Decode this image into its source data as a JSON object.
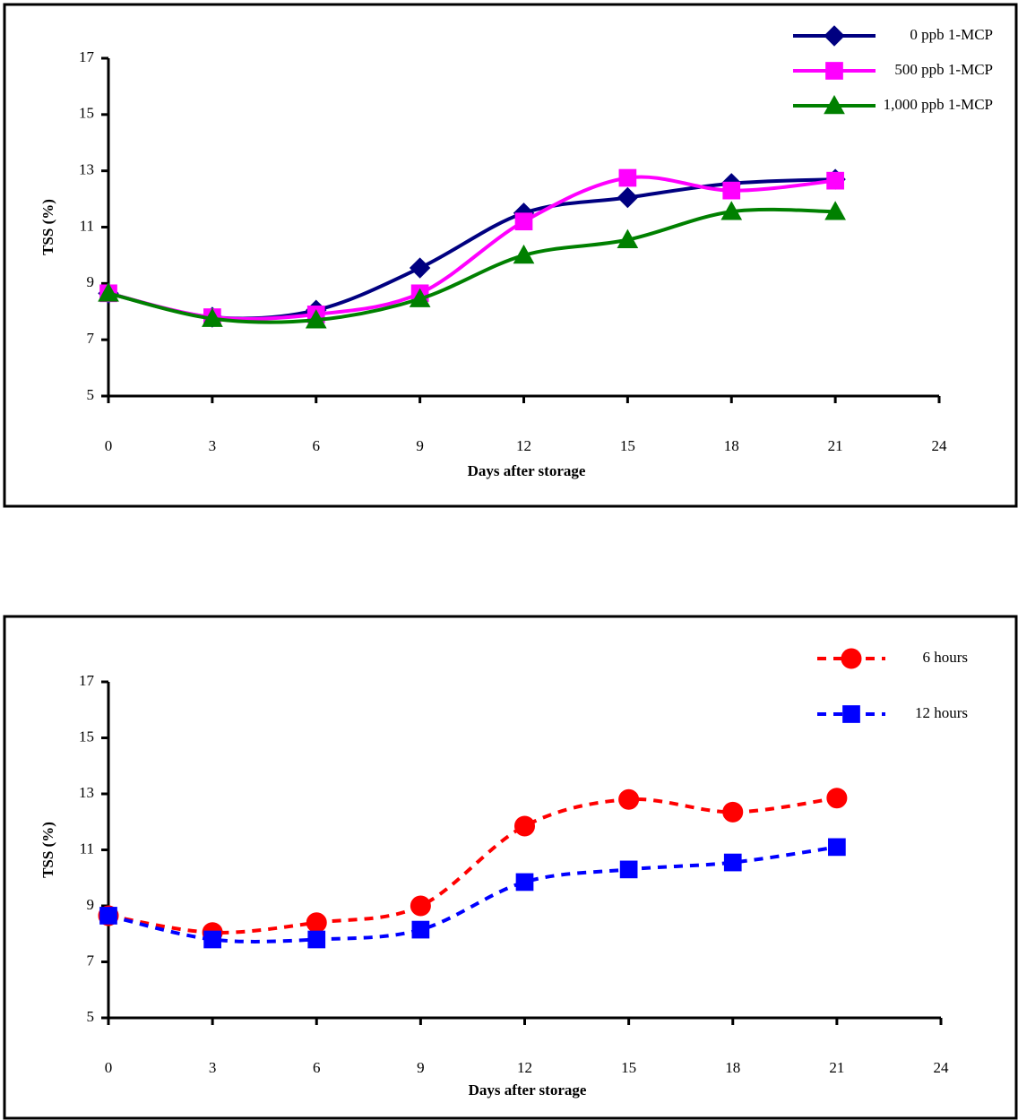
{
  "chart_data": [
    {
      "type": "line",
      "x_label": "Days after storage",
      "y_label": "TSS (%)",
      "x": [
        0,
        3,
        6,
        9,
        12,
        15,
        18,
        21
      ],
      "xlim": [
        0,
        24
      ],
      "xticks": [
        0,
        3,
        6,
        9,
        12,
        15,
        18,
        21,
        24
      ],
      "ylim": [
        5,
        17
      ],
      "yticks": [
        5,
        7,
        9,
        11,
        13,
        15,
        17
      ],
      "legend": "top-right",
      "dashed": false,
      "series": [
        {
          "name": "0 ppb 1-MCP",
          "color": "#000080",
          "marker": "diamond",
          "values": [
            8.65,
            7.8,
            8.05,
            9.55,
            11.5,
            12.05,
            12.55,
            12.7
          ]
        },
        {
          "name": "500 ppb 1-MCP",
          "color": "#ff00ff",
          "marker": "square",
          "values": [
            8.65,
            7.8,
            7.9,
            8.65,
            11.2,
            12.75,
            12.3,
            12.65
          ]
        },
        {
          "name": "1,000 ppb 1-MCP",
          "color": "#008000",
          "marker": "triangle",
          "values": [
            8.65,
            7.75,
            7.7,
            8.45,
            10.0,
            10.55,
            11.55,
            11.55
          ]
        }
      ]
    },
    {
      "type": "line",
      "x_label": "Days after storage",
      "y_label": "TSS (%)",
      "x": [
        0,
        3,
        6,
        9,
        12,
        15,
        18,
        21
      ],
      "xlim": [
        0,
        24
      ],
      "xticks": [
        0,
        3,
        6,
        9,
        12,
        15,
        18,
        21,
        24
      ],
      "ylim": [
        5,
        17
      ],
      "yticks": [
        5,
        7,
        9,
        11,
        13,
        15,
        17
      ],
      "legend": "top-right",
      "dashed": true,
      "series": [
        {
          "name": "6 hours",
          "color": "#ff0000",
          "marker": "circle",
          "values": [
            8.65,
            8.05,
            8.4,
            9.0,
            11.85,
            12.8,
            12.35,
            12.85
          ]
        },
        {
          "name": "12 hours",
          "color": "#0000ff",
          "marker": "square",
          "values": [
            8.65,
            7.8,
            7.8,
            8.15,
            9.85,
            10.3,
            10.55,
            11.1
          ]
        }
      ]
    }
  ]
}
